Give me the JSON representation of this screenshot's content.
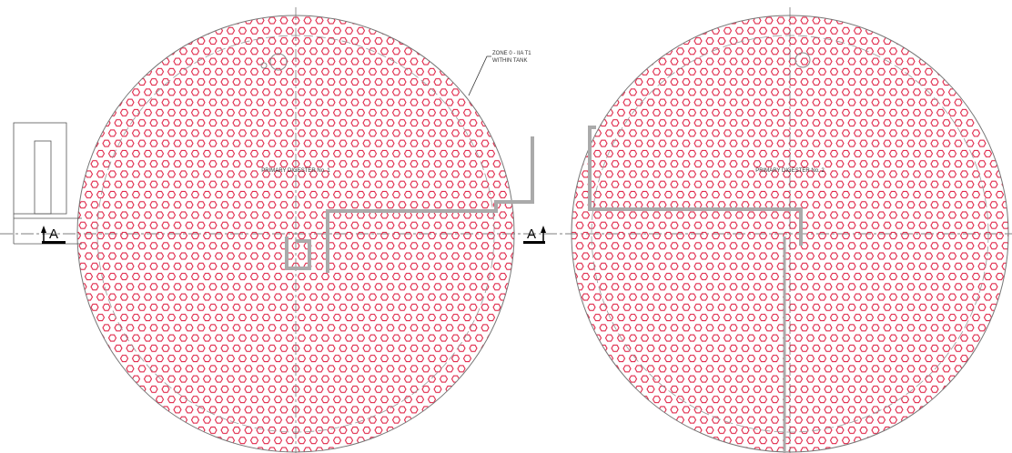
{
  "annotation": {
    "lines": [
      "ZONE 0 - IIA T1",
      "WITHIN TANK"
    ]
  },
  "tanks": [
    {
      "label": "PRIMARY DIGESTER No. 1"
    },
    {
      "label": "PRIMARY DIGESTER No. 2"
    }
  ],
  "section_marks": [
    "A",
    "A"
  ]
}
